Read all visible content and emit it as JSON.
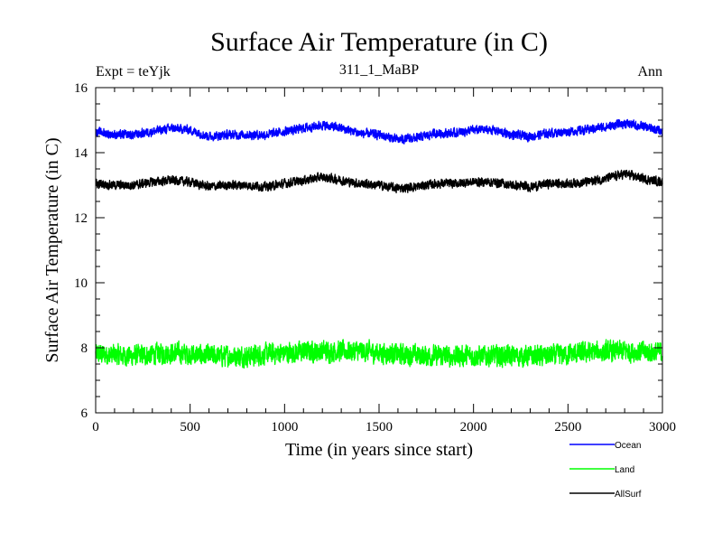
{
  "chart_data": {
    "type": "line",
    "title": "Surface Air Temperature (in C)",
    "subtitle_left": "Expt = teYjk",
    "subtitle_center": "311_1_MaBP",
    "subtitle_right": "Ann",
    "xlabel": "Time (in years since start)",
    "ylabel": "Surface Air Temperature (in C)",
    "xlim": [
      0,
      3000
    ],
    "ylim": [
      6,
      16
    ],
    "xticks": [
      0,
      500,
      1000,
      1500,
      2000,
      2500,
      3000
    ],
    "yticks": [
      6,
      8,
      10,
      12,
      14,
      16
    ],
    "x_minor_step": 100,
    "y_minor_step": 0.5,
    "grid": false,
    "legend_position": "bottom-right, outside plot",
    "series": [
      {
        "name": "Ocean",
        "color": "#0000ff",
        "noise": 0.12,
        "anchors": [
          [
            0,
            14.65
          ],
          [
            100,
            14.55
          ],
          [
            200,
            14.55
          ],
          [
            300,
            14.65
          ],
          [
            400,
            14.75
          ],
          [
            500,
            14.7
          ],
          [
            600,
            14.5
          ],
          [
            700,
            14.55
          ],
          [
            800,
            14.55
          ],
          [
            900,
            14.55
          ],
          [
            1000,
            14.65
          ],
          [
            1100,
            14.75
          ],
          [
            1200,
            14.85
          ],
          [
            1300,
            14.75
          ],
          [
            1400,
            14.6
          ],
          [
            1500,
            14.55
          ],
          [
            1600,
            14.4
          ],
          [
            1700,
            14.45
          ],
          [
            1800,
            14.6
          ],
          [
            1900,
            14.6
          ],
          [
            2000,
            14.7
          ],
          [
            2100,
            14.7
          ],
          [
            2200,
            14.55
          ],
          [
            2300,
            14.5
          ],
          [
            2400,
            14.6
          ],
          [
            2500,
            14.65
          ],
          [
            2600,
            14.7
          ],
          [
            2700,
            14.8
          ],
          [
            2800,
            14.9
          ],
          [
            2900,
            14.8
          ],
          [
            3000,
            14.65
          ]
        ]
      },
      {
        "name": "Land",
        "color": "#00ff00",
        "noise": 0.28,
        "anchors": [
          [
            0,
            7.8
          ],
          [
            200,
            7.75
          ],
          [
            400,
            7.85
          ],
          [
            600,
            7.75
          ],
          [
            800,
            7.75
          ],
          [
            1000,
            7.85
          ],
          [
            1200,
            7.9
          ],
          [
            1400,
            7.9
          ],
          [
            1600,
            7.8
          ],
          [
            1800,
            7.75
          ],
          [
            2000,
            7.75
          ],
          [
            2200,
            7.75
          ],
          [
            2400,
            7.75
          ],
          [
            2600,
            7.85
          ],
          [
            2800,
            7.9
          ],
          [
            3000,
            7.85
          ]
        ]
      },
      {
        "name": "AllSurf",
        "color": "#000000",
        "noise": 0.12,
        "anchors": [
          [
            0,
            13.05
          ],
          [
            100,
            13.0
          ],
          [
            200,
            13.0
          ],
          [
            300,
            13.1
          ],
          [
            400,
            13.15
          ],
          [
            500,
            13.1
          ],
          [
            600,
            12.95
          ],
          [
            700,
            13.0
          ],
          [
            800,
            13.0
          ],
          [
            900,
            12.95
          ],
          [
            1000,
            13.05
          ],
          [
            1100,
            13.15
          ],
          [
            1200,
            13.25
          ],
          [
            1300,
            13.15
          ],
          [
            1400,
            13.05
          ],
          [
            1500,
            13.0
          ],
          [
            1600,
            12.9
          ],
          [
            1700,
            12.95
          ],
          [
            1800,
            13.05
          ],
          [
            1900,
            13.05
          ],
          [
            2000,
            13.1
          ],
          [
            2100,
            13.1
          ],
          [
            2200,
            13.0
          ],
          [
            2300,
            12.95
          ],
          [
            2400,
            13.05
          ],
          [
            2500,
            13.05
          ],
          [
            2600,
            13.1
          ],
          [
            2700,
            13.2
          ],
          [
            2800,
            13.35
          ],
          [
            2900,
            13.2
          ],
          [
            3000,
            13.1
          ]
        ]
      }
    ]
  }
}
